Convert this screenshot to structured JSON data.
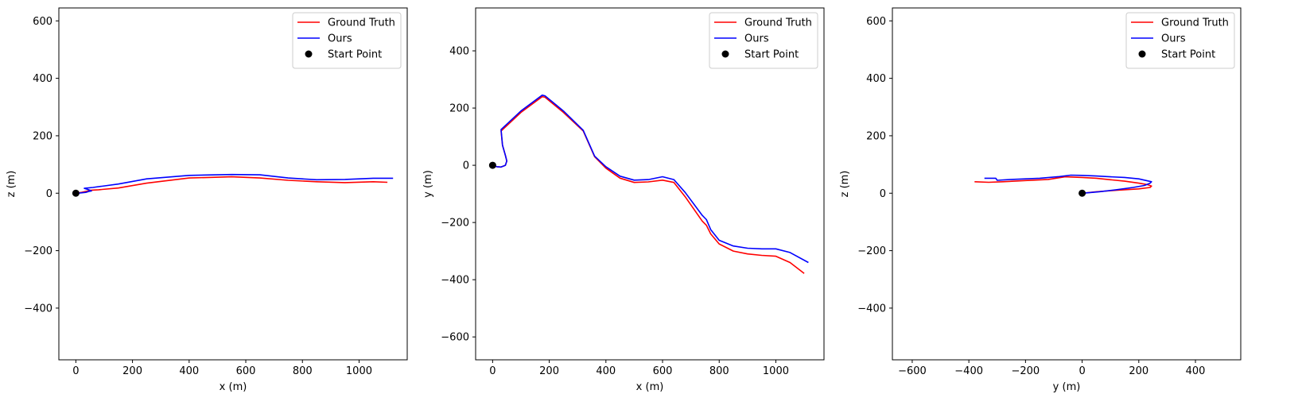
{
  "chart_data": [
    {
      "type": "line",
      "title": "",
      "xlabel": "x (m)",
      "ylabel": "z (m)",
      "xlim": [
        -60,
        1170
      ],
      "ylim": [
        -580,
        645
      ],
      "xticks": [
        0,
        200,
        400,
        600,
        800,
        1000
      ],
      "yticks": [
        -400,
        -200,
        0,
        200,
        400,
        600
      ],
      "xtick_labels": [
        "0",
        "200",
        "400",
        "600",
        "800",
        "1000"
      ],
      "ytick_labels": [
        "−400",
        "−200",
        "0",
        "200",
        "400",
        "600"
      ],
      "legend_position": "top-right",
      "legend": [
        "Ground Truth",
        "Ours",
        "Start Point"
      ],
      "series": [
        {
          "name": "Ground Truth",
          "color": "#ff0000",
          "x": [
            0,
            20,
            40,
            50,
            80,
            150,
            250,
            400,
            550,
            650,
            750,
            850,
            950,
            1050,
            1100
          ],
          "y": [
            0,
            3,
            7,
            10,
            12,
            18,
            35,
            53,
            57,
            53,
            45,
            40,
            37,
            40,
            38
          ]
        },
        {
          "name": "Ours",
          "color": "#0000ff",
          "x": [
            0,
            15,
            35,
            45,
            55,
            45,
            30,
            60,
            150,
            250,
            400,
            550,
            650,
            750,
            850,
            950,
            1050,
            1120
          ],
          "y": [
            0,
            1,
            3,
            6,
            8,
            12,
            17,
            20,
            32,
            50,
            62,
            65,
            64,
            53,
            47,
            48,
            52,
            52
          ]
        }
      ],
      "start_point": {
        "label": "Start Point",
        "x": 0,
        "y": 0,
        "color": "#000000"
      }
    },
    {
      "type": "line",
      "title": "",
      "xlabel": "x (m)",
      "ylabel": "y (m)",
      "xlim": [
        -60,
        1170
      ],
      "ylim": [
        -680,
        550
      ],
      "xticks": [
        0,
        200,
        400,
        600,
        800,
        1000
      ],
      "yticks": [
        -600,
        -400,
        -200,
        0,
        200,
        400
      ],
      "xtick_labels": [
        "0",
        "200",
        "400",
        "600",
        "800",
        "1000"
      ],
      "ytick_labels": [
        "−600",
        "−400",
        "−200",
        "0",
        "200",
        "400"
      ],
      "legend_position": "top-right",
      "legend": [
        "Ground Truth",
        "Ours",
        "Start Point"
      ],
      "series": [
        {
          "name": "Ground Truth",
          "color": "#ff0000",
          "x": [
            0,
            15,
            30,
            45,
            50,
            45,
            35,
            30,
            100,
            175,
            185,
            250,
            320,
            360,
            400,
            450,
            500,
            550,
            600,
            640,
            680,
            740,
            755,
            770,
            800,
            850,
            900,
            950,
            1000,
            1050,
            1100
          ],
          "y": [
            0,
            -5,
            -6,
            0,
            15,
            35,
            70,
            120,
            185,
            240,
            238,
            185,
            120,
            30,
            -10,
            -45,
            -60,
            -58,
            -52,
            -60,
            -110,
            -195,
            -210,
            -240,
            -275,
            -300,
            -310,
            -315,
            -318,
            -340,
            -378
          ]
        },
        {
          "name": "Ours",
          "color": "#0000ff",
          "x": [
            0,
            15,
            30,
            45,
            50,
            45,
            35,
            30,
            100,
            175,
            185,
            250,
            320,
            360,
            400,
            450,
            500,
            550,
            600,
            640,
            680,
            740,
            755,
            770,
            800,
            850,
            900,
            950,
            1000,
            1050,
            1115
          ],
          "y": [
            0,
            -5,
            -6,
            0,
            15,
            35,
            70,
            125,
            190,
            245,
            243,
            190,
            122,
            32,
            -5,
            -38,
            -52,
            -50,
            -40,
            -50,
            -95,
            -175,
            -190,
            -225,
            -262,
            -282,
            -290,
            -292,
            -292,
            -305,
            -340
          ]
        }
      ],
      "start_point": {
        "label": "Start Point",
        "x": 0,
        "y": 0,
        "color": "#000000"
      }
    },
    {
      "type": "line",
      "title": "",
      "xlabel": "y (m)",
      "ylabel": "z (m)",
      "xlim": [
        -670,
        560
      ],
      "ylim": [
        -580,
        645
      ],
      "xticks": [
        -600,
        -400,
        -200,
        0,
        200,
        400
      ],
      "yticks": [
        -400,
        -200,
        0,
        200,
        400,
        600
      ],
      "xtick_labels": [
        "−600",
        "−400",
        "−200",
        "0",
        "200",
        "400"
      ],
      "ytick_labels": [
        "−400",
        "−200",
        "0",
        "200",
        "400",
        "600"
      ],
      "legend_position": "top-right",
      "legend": [
        "Ground Truth",
        "Ours",
        "Start Point"
      ],
      "series": [
        {
          "name": "Ground Truth",
          "color": "#ff0000",
          "x": [
            0,
            50,
            120,
            200,
            240,
            245,
            230,
            200,
            150,
            100,
            50,
            0,
            -60,
            -120,
            -200,
            -280,
            -330,
            -380
          ],
          "y": [
            0,
            5,
            10,
            15,
            20,
            25,
            30,
            35,
            42,
            47,
            52,
            55,
            57,
            48,
            44,
            40,
            38,
            40
          ]
        },
        {
          "name": "Ours",
          "color": "#0000ff",
          "x": [
            0,
            60,
            120,
            180,
            220,
            240,
            245,
            200,
            150,
            100,
            50,
            0,
            -40,
            -80,
            -150,
            -200,
            -250,
            -300,
            -305,
            -345
          ],
          "y": [
            0,
            5,
            12,
            20,
            27,
            35,
            40,
            50,
            55,
            57,
            60,
            62,
            63,
            58,
            52,
            50,
            48,
            45,
            52,
            52
          ]
        }
      ],
      "start_point": {
        "label": "Start Point",
        "x": 0,
        "y": 0,
        "color": "#000000"
      }
    }
  ]
}
